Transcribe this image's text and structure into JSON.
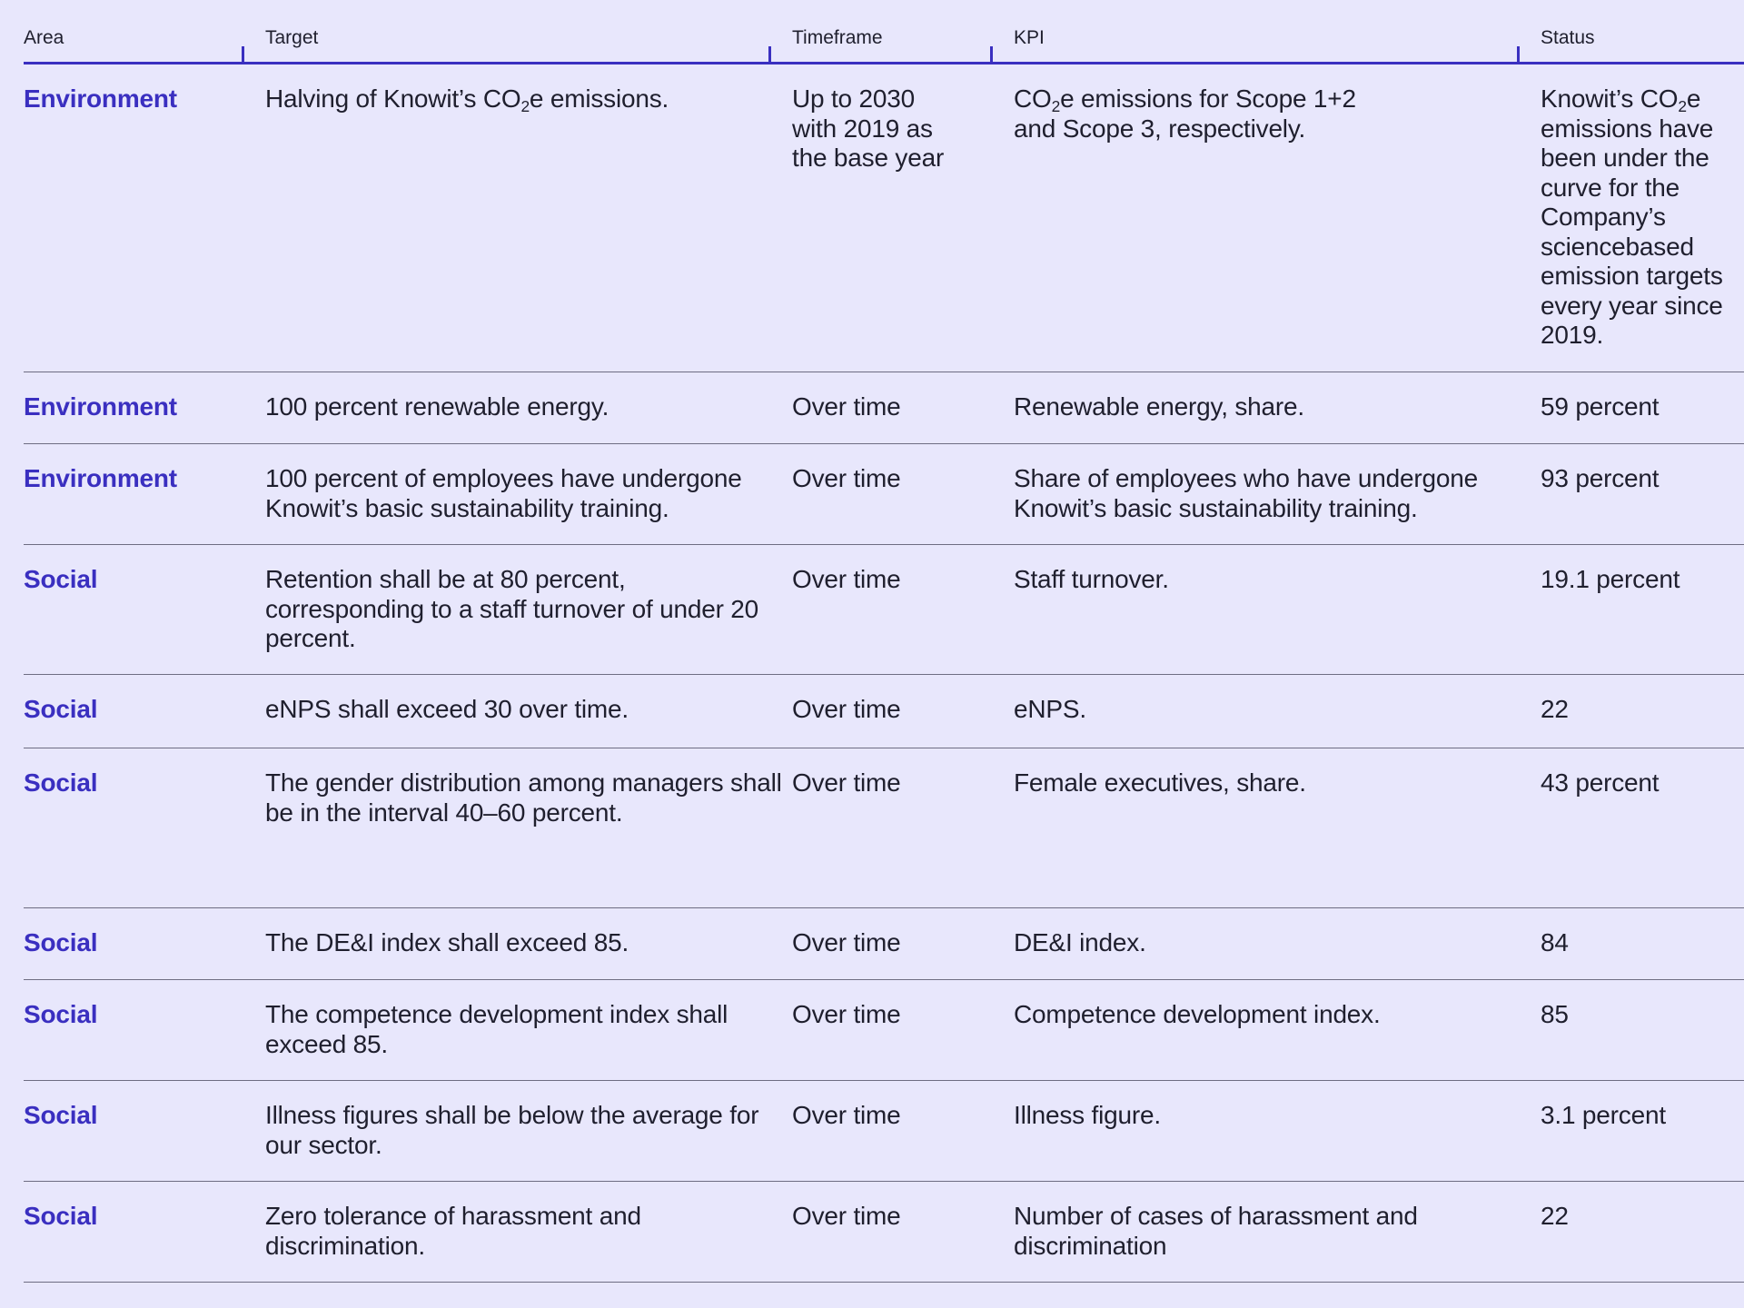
{
  "columns": {
    "area": "Area",
    "target": "Target",
    "timeframe": "Timeframe",
    "kpi": "KPI",
    "status": "Status"
  },
  "rows": [
    {
      "area": "Environment",
      "target_pre": "Halving of Knowit’s CO",
      "target_sub": "2",
      "target_post": "e emissions.",
      "timeframe": "Up to 2030 with 2019 as the base year",
      "kpi_pre": "CO",
      "kpi_sub": "2",
      "kpi_post": "e emissions for Scope 1+2 and Scope 3, respectively.",
      "status_pre": "Knowit’s CO",
      "status_sub": "2",
      "status_post": "e emissions have been under the curve for the Company’s sciencebased emission targets every year since 2019."
    },
    {
      "area": "Environment",
      "target": "100 percent renewable energy.",
      "timeframe": "Over time",
      "kpi": "Renewable energy, share.",
      "status": "59 percent"
    },
    {
      "area": "Environment",
      "target": "100 percent of employees have undergone Knowit’s basic sustainability training.",
      "timeframe": "Over time",
      "kpi": "Share of employees who have undergone Knowit’s basic sustainability training.",
      "status": "93 percent"
    },
    {
      "area": "Social",
      "target": "Retention shall be at 80 percent, corresponding to a staff turnover of under 20 percent.",
      "timeframe": "Over time",
      "kpi": "Staff turnover.",
      "status": "19.1 percent"
    },
    {
      "area": "Social",
      "target": "eNPS shall exceed 30 over time.",
      "timeframe": "Over time",
      "kpi": "eNPS.",
      "status": "22"
    },
    {
      "area": "Social",
      "target": "The gender distribution among managers shall be in the interval 40–60 percent.",
      "timeframe": "Over time",
      "kpi": "Female executives, share.",
      "status": "43 percent"
    },
    {
      "area": "Social",
      "target": "The DE&I index shall exceed 85.",
      "timeframe": "Over time",
      "kpi": "DE&I index.",
      "status": "84"
    },
    {
      "area": "Social",
      "target": "The competence development index shall exceed 85.",
      "timeframe": "Over time",
      "kpi": "Competence development index.",
      "status": "85"
    },
    {
      "area": "Social",
      "target": "Illness figures shall be below the average for our sector.",
      "timeframe": "Over time",
      "kpi": "Illness figure.",
      "status": "3.1 percent"
    },
    {
      "area": "Social",
      "target": "Zero tolerance of harassment and discrimination.",
      "timeframe": "Over time",
      "kpi": "Number of cases of harassment and discrimination",
      "status": "22"
    }
  ]
}
